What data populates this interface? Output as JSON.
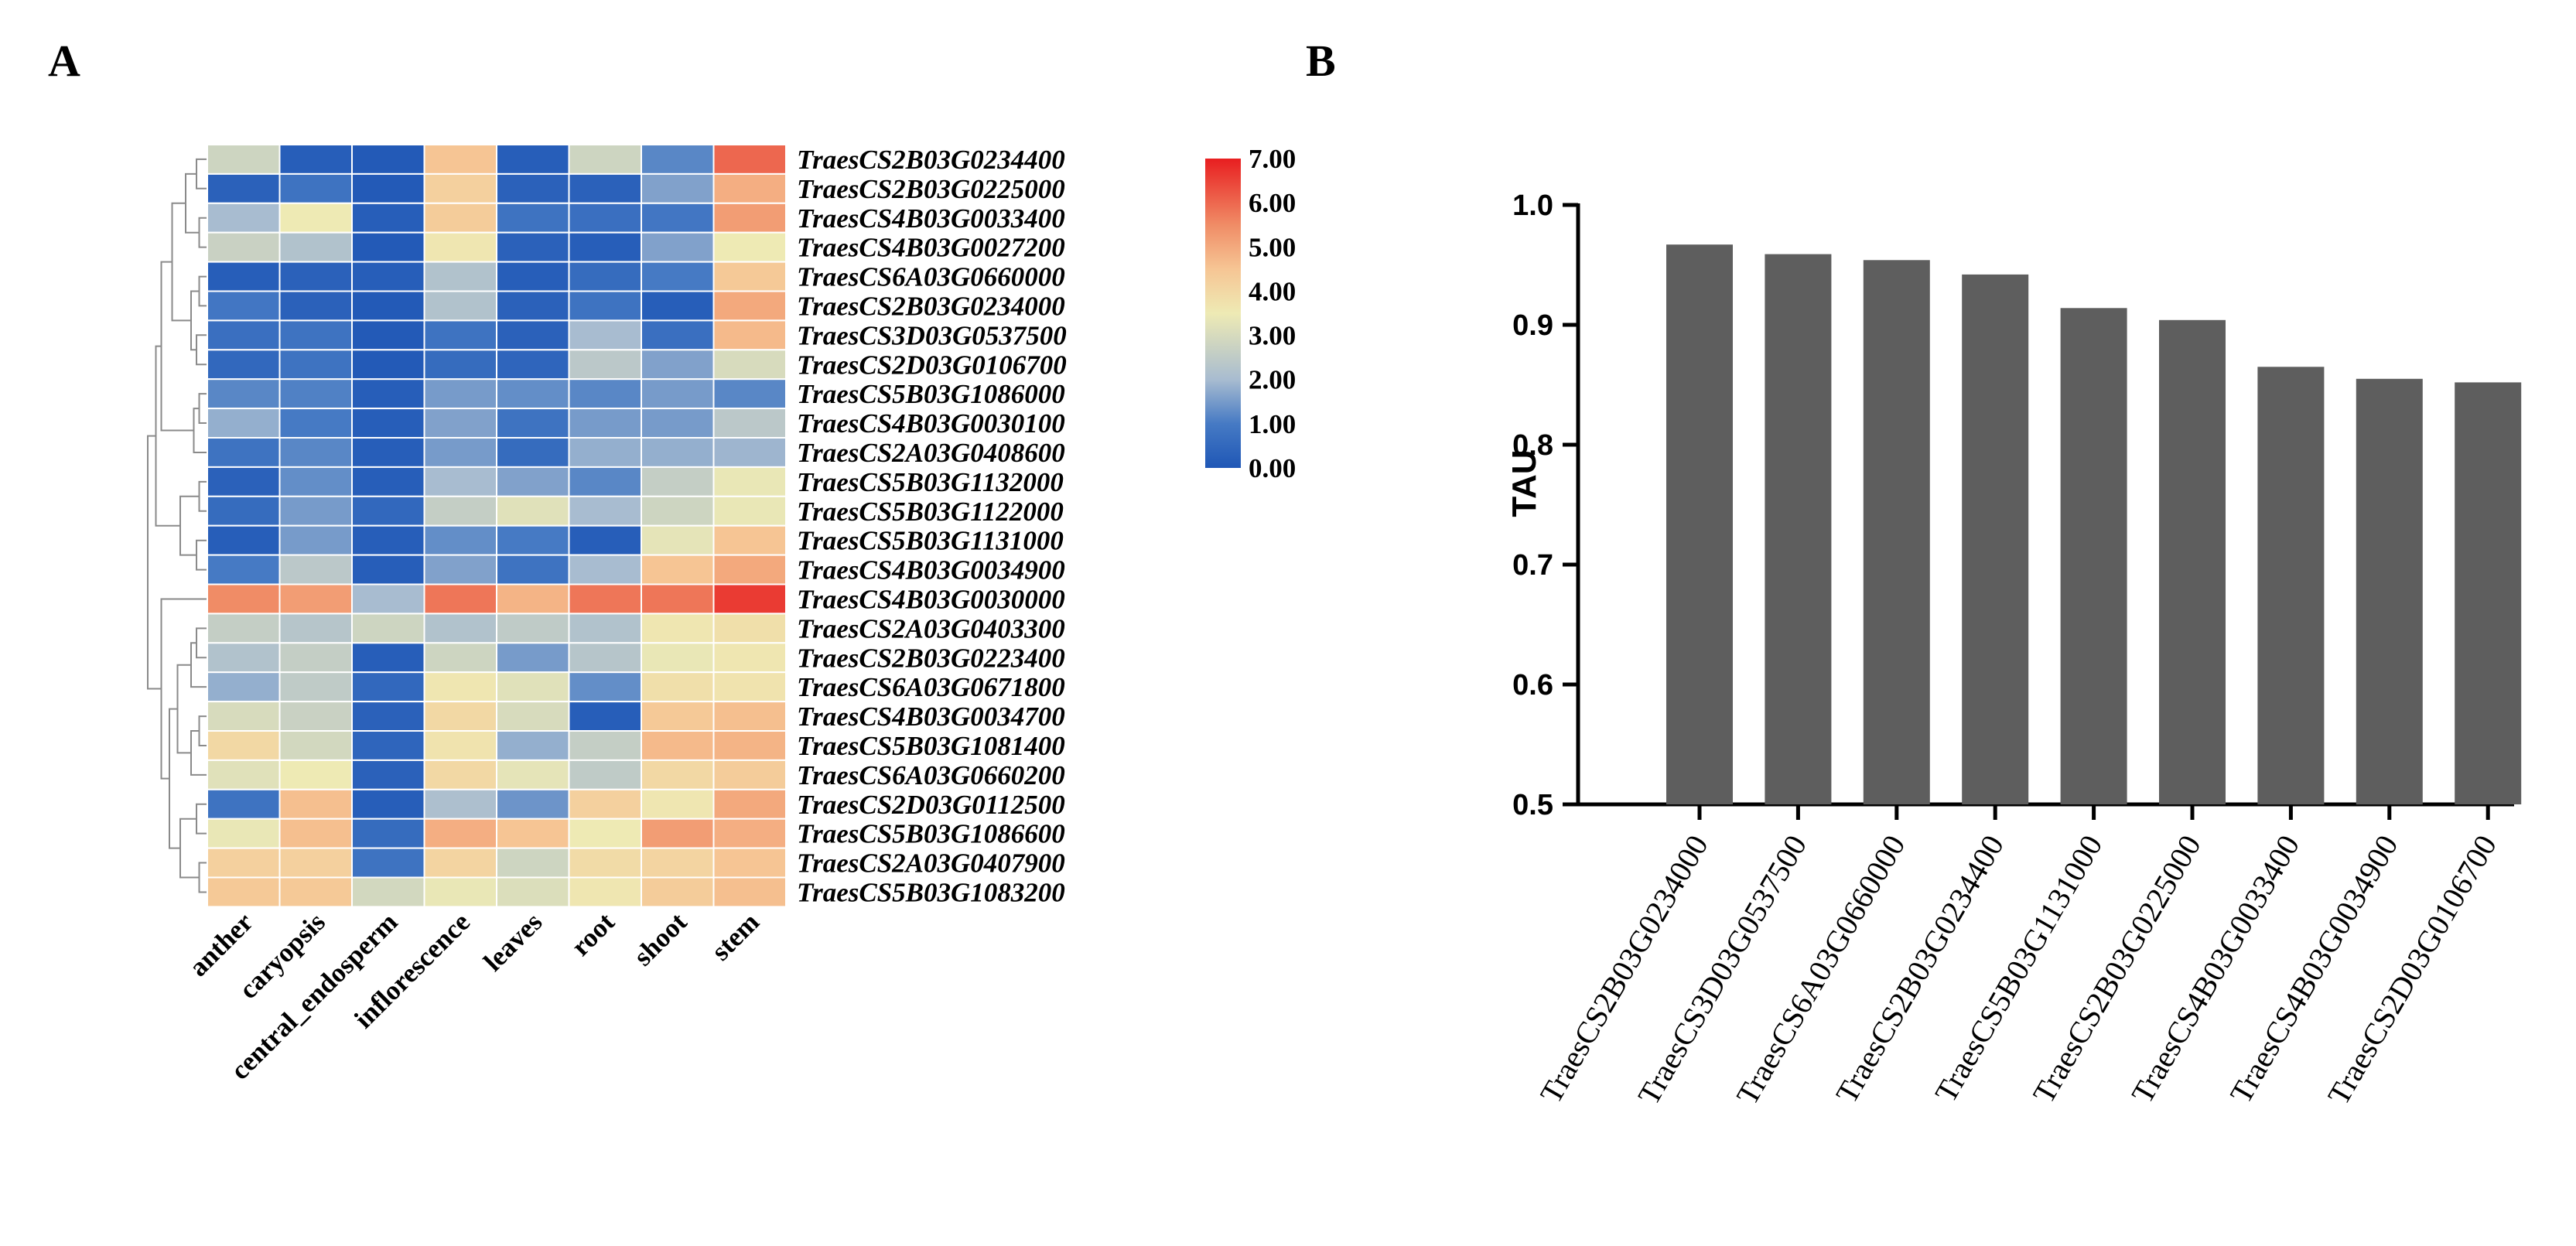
{
  "panels": {
    "a": "A",
    "b": "B"
  },
  "colors": {
    "bar": "#5e5e5e",
    "low": "#1f5bb8",
    "mid": "#eeeab6",
    "high": "#ea2a25",
    "tree": "#8a8a8a"
  },
  "chart_data": [
    {
      "type": "heatmap",
      "title": "",
      "columns": [
        "anther",
        "caryopsis",
        "central_endosperm",
        "inflorescence",
        "leaves",
        "root",
        "shoot",
        "stem"
      ],
      "rows": [
        "TraesCS2B03G0234400",
        "TraesCS2B03G0225000",
        "TraesCS4B03G0033400",
        "TraesCS4B03G0027200",
        "TraesCS6A03G0660000",
        "TraesCS2B03G0234000",
        "TraesCS3D03G0537500",
        "TraesCS2D03G0106700",
        "TraesCS5B03G1086000",
        "TraesCS4B03G0030100",
        "TraesCS2A03G0408600",
        "TraesCS5B03G1132000",
        "TraesCS5B03G1122000",
        "TraesCS5B03G1131000",
        "TraesCS4B03G0034900",
        "TraesCS4B03G0030000",
        "TraesCS2A03G0403300",
        "TraesCS2B03G0223400",
        "TraesCS6A03G0671800",
        "TraesCS4B03G0034700",
        "TraesCS5B03G1081400",
        "TraesCS6A03G0660200",
        "TraesCS2D03G0112500",
        "TraesCS5B03G1086600",
        "TraesCS2A03G0407900",
        "TraesCS5B03G1083200"
      ],
      "values": [
        [
          2.8,
          0.2,
          0.1,
          4.5,
          0.2,
          2.8,
          1.2,
          6.0
        ],
        [
          0.3,
          0.8,
          0.1,
          4.2,
          0.3,
          0.3,
          1.6,
          4.9
        ],
        [
          2.0,
          3.5,
          0.2,
          4.3,
          0.8,
          0.7,
          0.9,
          5.2
        ],
        [
          2.7,
          2.2,
          0.1,
          3.6,
          0.3,
          0.2,
          1.6,
          3.5
        ],
        [
          0.2,
          0.3,
          0.2,
          2.2,
          0.2,
          0.6,
          1.0,
          4.4
        ],
        [
          0.9,
          0.3,
          0.1,
          2.2,
          0.3,
          0.8,
          0.2,
          5.0
        ],
        [
          0.7,
          0.8,
          0.1,
          0.8,
          0.3,
          2.0,
          0.7,
          4.7
        ],
        [
          0.5,
          0.8,
          0.1,
          0.6,
          0.4,
          2.4,
          1.6,
          3.0
        ],
        [
          1.2,
          1.1,
          0.2,
          1.5,
          1.3,
          1.2,
          1.5,
          1.2
        ],
        [
          1.8,
          1.0,
          0.2,
          1.6,
          0.8,
          1.5,
          1.5,
          2.4
        ],
        [
          0.8,
          1.2,
          0.2,
          1.5,
          0.6,
          1.8,
          1.8,
          1.9
        ],
        [
          0.3,
          1.3,
          0.2,
          2.0,
          1.6,
          1.2,
          2.6,
          3.4
        ],
        [
          0.6,
          1.5,
          0.5,
          2.6,
          3.2,
          2.0,
          2.8,
          3.4
        ],
        [
          0.2,
          1.5,
          0.2,
          1.3,
          1.0,
          0.2,
          3.3,
          4.5
        ],
        [
          1.0,
          2.4,
          0.2,
          1.6,
          0.8,
          2.0,
          4.5,
          5.0
        ],
        [
          5.5,
          5.2,
          2.0,
          5.8,
          4.8,
          5.8,
          5.8,
          6.6
        ],
        [
          2.6,
          2.3,
          2.8,
          2.2,
          2.5,
          2.2,
          3.6,
          3.8
        ],
        [
          2.2,
          2.6,
          0.2,
          2.8,
          1.5,
          2.3,
          3.4,
          3.6
        ],
        [
          1.8,
          2.5,
          0.5,
          3.6,
          3.2,
          1.3,
          3.8,
          3.7
        ],
        [
          3.0,
          2.7,
          0.3,
          4.0,
          3.0,
          0.2,
          4.4,
          4.6
        ],
        [
          4.0,
          2.9,
          0.4,
          3.7,
          1.8,
          2.6,
          4.7,
          4.8
        ],
        [
          3.2,
          3.5,
          0.3,
          4.0,
          3.3,
          2.5,
          4.0,
          4.3
        ],
        [
          0.8,
          4.6,
          0.2,
          2.1,
          1.4,
          4.2,
          3.6,
          5.0
        ],
        [
          3.4,
          4.6,
          0.6,
          4.9,
          4.5,
          3.5,
          5.2,
          4.9
        ],
        [
          4.2,
          4.2,
          0.8,
          4.1,
          2.8,
          3.9,
          4.1,
          4.5
        ],
        [
          4.4,
          4.4,
          2.9,
          3.4,
          3.1,
          3.6,
          4.3,
          4.6
        ]
      ],
      "colorbar": {
        "ticks": [
          "7.00",
          "6.00",
          "5.00",
          "4.00",
          "3.00",
          "2.00",
          "1.00",
          "0.00"
        ],
        "range": [
          0,
          7
        ]
      },
      "dendrogram": "rows"
    },
    {
      "type": "bar",
      "title": "",
      "categories": [
        "TraesCS2B03G0234000",
        "TraesCS3D03G0537500",
        "TraesCS6A03G0660000",
        "TraesCS2B03G0234400",
        "TraesCS5B03G1131000",
        "TraesCS2B03G0225000",
        "TraesCS4B03G0033400",
        "TraesCS4B03G0034900",
        "TraesCS2D03G0106700"
      ],
      "values": [
        0.967,
        0.959,
        0.954,
        0.942,
        0.914,
        0.904,
        0.865,
        0.855,
        0.852
      ],
      "xlabel": "",
      "ylabel": "TAU",
      "ylim": [
        0.5,
        1.0
      ],
      "yticks": [
        "0.5",
        "0.6",
        "0.7",
        "0.8",
        "0.9",
        "1.0"
      ],
      "grid": false
    }
  ]
}
